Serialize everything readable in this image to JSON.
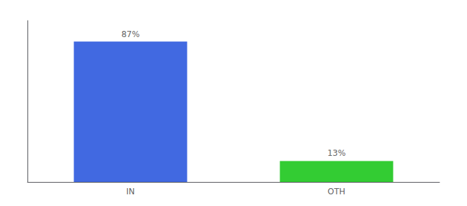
{
  "chart_data": {
    "type": "bar",
    "categories": [
      "IN",
      "OTH"
    ],
    "values": [
      87,
      13
    ],
    "value_labels": [
      "87%",
      "13%"
    ],
    "colors": [
      "#4169e1",
      "#33cc33"
    ],
    "ylim": [
      0,
      100
    ],
    "data_labels": true,
    "tick_labels": "x",
    "grid": false
  }
}
